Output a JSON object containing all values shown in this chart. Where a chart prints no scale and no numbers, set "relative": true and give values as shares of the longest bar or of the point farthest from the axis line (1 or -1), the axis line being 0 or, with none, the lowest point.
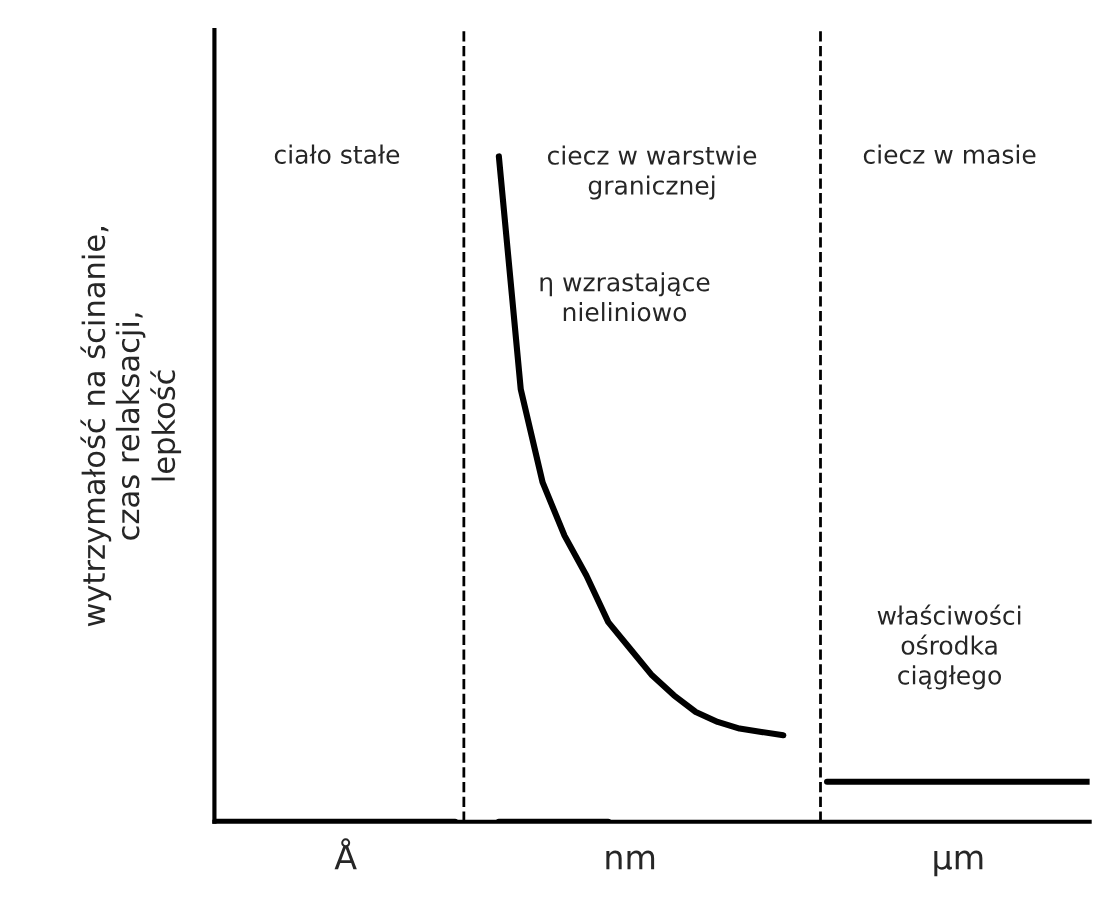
{
  "chart_data": {
    "type": "line",
    "relative": true,
    "ylabel": "wytrzymałość na ścinanie,\nczas relaksacji,\nlepkość",
    "categories": [
      null,
      null,
      null,
      null,
      null,
      null,
      "Å",
      null,
      null,
      null,
      null,
      null,
      null,
      null,
      null,
      null,
      null,
      null,
      null,
      "nm",
      null,
      null,
      null,
      null,
      null,
      null,
      null,
      null,
      null,
      null,
      null,
      null,
      null,
      null,
      "µm",
      null,
      null,
      null,
      null,
      null,
      null
    ],
    "series": [
      {
        "color": "#000000",
        "values": [
          0,
          0,
          0,
          0,
          0,
          0,
          0,
          0,
          0,
          0,
          0,
          0,
          null,
          null,
          null,
          null,
          null,
          null,
          null,
          null,
          null,
          null,
          null,
          null,
          null,
          null,
          null,
          null,
          null,
          null,
          null,
          null,
          null,
          null,
          null,
          null,
          null,
          null,
          null,
          null,
          null
        ]
      },
      {
        "color": "#000000",
        "values": [
          null,
          null,
          null,
          null,
          null,
          null,
          null,
          null,
          null,
          null,
          null,
          null,
          null,
          0,
          0,
          0,
          0,
          0,
          0,
          null,
          null,
          null,
          null,
          null,
          null,
          null,
          null,
          null,
          null,
          null,
          null,
          null,
          null,
          null,
          null,
          null,
          null,
          null,
          null,
          null,
          null
        ]
      },
      {
        "color": "#000000",
        "values": [
          null,
          null,
          null,
          null,
          null,
          null,
          null,
          null,
          null,
          null,
          null,
          null,
          null,
          1,
          0.65,
          0.51,
          0.43,
          0.37,
          0.3,
          0.26,
          0.22,
          0.19,
          0.165,
          0.15,
          0.14,
          0.135,
          0.13,
          null,
          null,
          null,
          null,
          null,
          null,
          null,
          null,
          null,
          null,
          null,
          null,
          null,
          null
        ]
      },
      {
        "color": "#000000",
        "values": [
          null,
          null,
          null,
          null,
          null,
          null,
          null,
          null,
          null,
          null,
          null,
          null,
          null,
          null,
          null,
          null,
          null,
          null,
          null,
          null,
          null,
          null,
          null,
          null,
          null,
          null,
          null,
          null,
          0.06,
          0.06,
          0.06,
          0.06,
          0.06,
          0.06,
          0.06,
          0.06,
          0.06,
          0.06,
          0.06,
          0.06,
          0.06
        ]
      }
    ],
    "annotations": [
      "ciało stałe",
      "ciecz w warstwie\ngranicznej",
      "η wzrastające\nnieliniowo",
      "ciecz w masie",
      "właściwości\nośrodka\nciągłego"
    ],
    "grid": false,
    "legend": false,
    "marker": "none",
    "line_style": "solid"
  }
}
